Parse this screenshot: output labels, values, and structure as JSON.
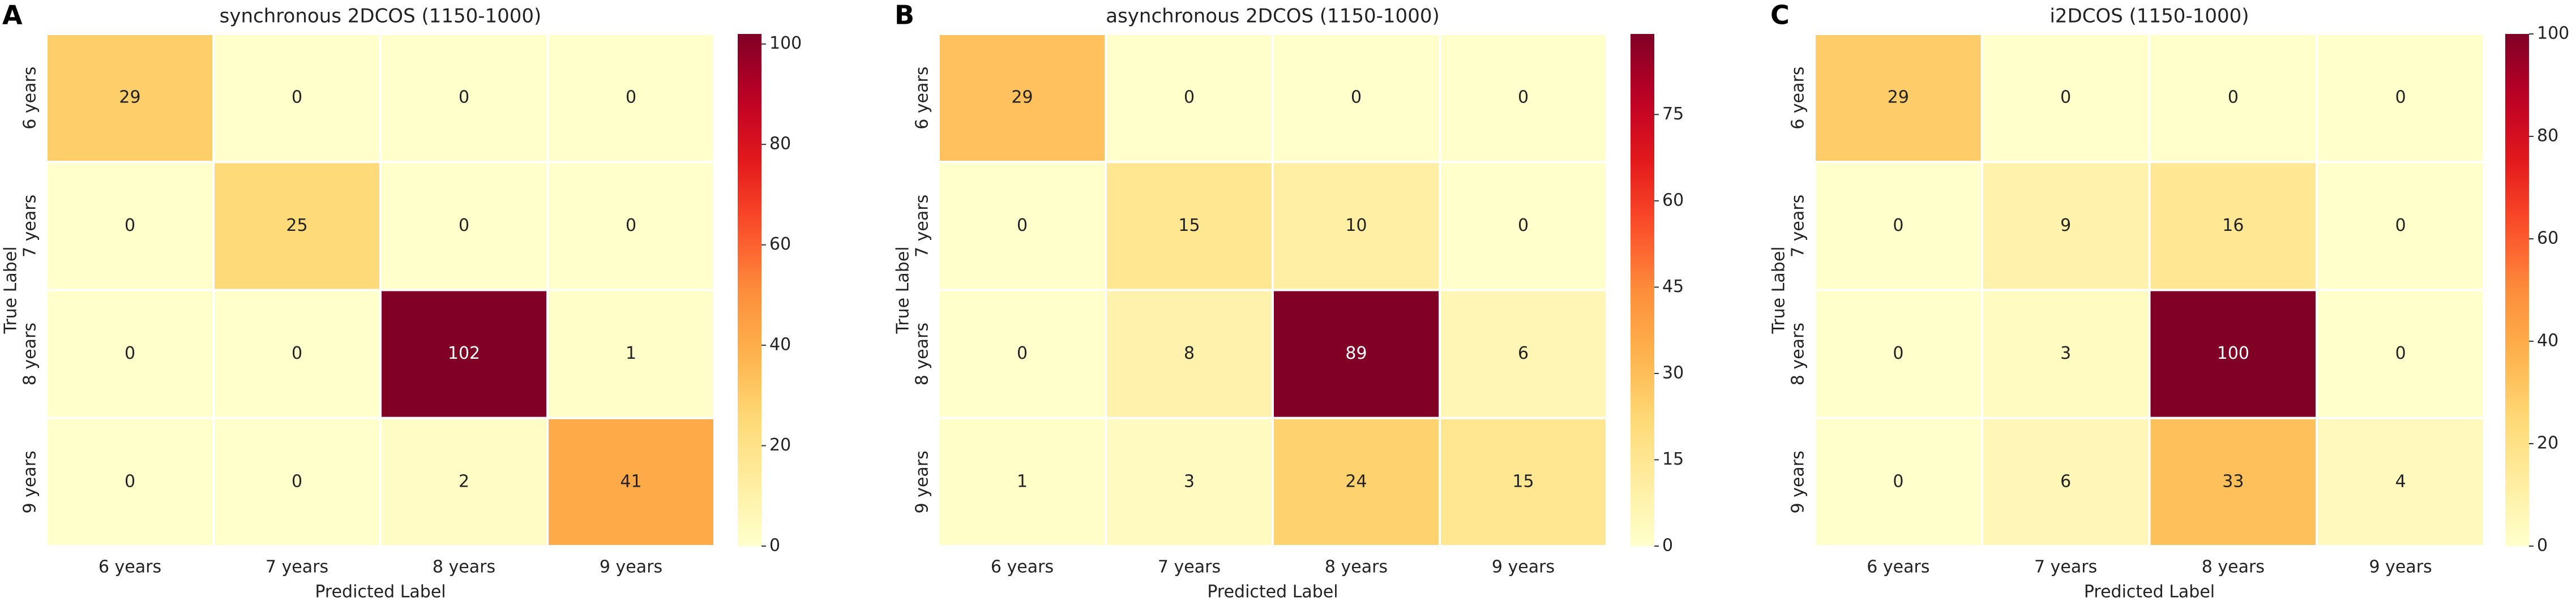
{
  "chart_data": [
    {
      "type": "heatmap",
      "panel_label": "A",
      "title": "synchronous 2DCOS (1150-1000)",
      "x_label": "Predicted Label",
      "y_label": "True Label",
      "x_categories": [
        "6 years",
        "7 years",
        "8 years",
        "9 years"
      ],
      "y_categories": [
        "6 years",
        "7 years",
        "8 years",
        "9 years"
      ],
      "values": [
        [
          29,
          0,
          0,
          0
        ],
        [
          0,
          25,
          0,
          0
        ],
        [
          0,
          0,
          102,
          1
        ],
        [
          0,
          0,
          2,
          41
        ]
      ],
      "colormap": "YlOrRd",
      "zlim": [
        0,
        102
      ],
      "zticks": [
        0,
        20,
        40,
        60,
        80,
        100
      ]
    },
    {
      "type": "heatmap",
      "panel_label": "B",
      "title": "asynchronous 2DCOS (1150-1000)",
      "x_label": "Predicted Label",
      "y_label": "True Label",
      "x_categories": [
        "6 years",
        "7 years",
        "8 years",
        "9 years"
      ],
      "y_categories": [
        "6 years",
        "7 years",
        "8 years",
        "9 years"
      ],
      "values": [
        [
          29,
          0,
          0,
          0
        ],
        [
          0,
          15,
          10,
          0
        ],
        [
          0,
          8,
          89,
          6
        ],
        [
          1,
          3,
          24,
          15
        ]
      ],
      "colormap": "YlOrRd",
      "zlim": [
        0,
        89
      ],
      "zticks": [
        0,
        15,
        30,
        45,
        60,
        75
      ]
    },
    {
      "type": "heatmap",
      "panel_label": "C",
      "title": "i2DCOS (1150-1000)",
      "x_label": "Predicted Label",
      "y_label": "True Label",
      "x_categories": [
        "6 years",
        "7 years",
        "8 years",
        "9 years"
      ],
      "y_categories": [
        "6 years",
        "7 years",
        "8 years",
        "9 years"
      ],
      "values": [
        [
          29,
          0,
          0,
          0
        ],
        [
          0,
          9,
          16,
          0
        ],
        [
          0,
          3,
          100,
          0
        ],
        [
          0,
          6,
          33,
          4
        ]
      ],
      "colormap": "YlOrRd",
      "zlim": [
        0,
        100
      ],
      "zticks": [
        0,
        20,
        40,
        60,
        80,
        100
      ]
    }
  ]
}
